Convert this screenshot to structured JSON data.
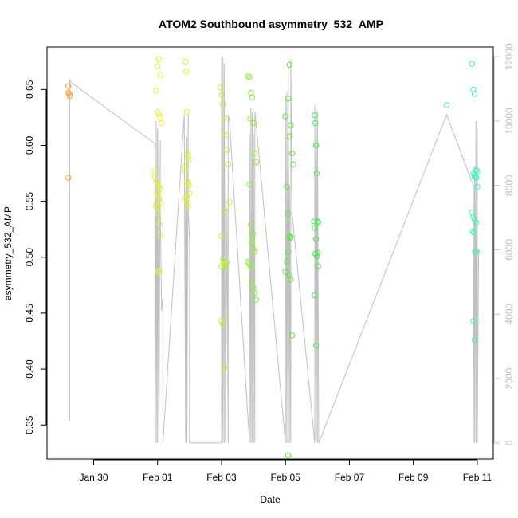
{
  "chart_data": {
    "type": "scatter",
    "title": "ATOM2 Southbound asymmetry_532_AMP",
    "xlabel": "Date",
    "ylabel": "asymmetry_532_AMP",
    "xlim": [
      "2014-01-28T13:00",
      "2014-02-11T12:00"
    ],
    "ylim": [
      0.3195,
      0.688
    ],
    "y2lim": [
      -500,
      12300
    ],
    "x_ticks": [
      {
        "date": "2014-01-30",
        "label": "Jan 30"
      },
      {
        "date": "2014-02-01",
        "label": "Feb 01"
      },
      {
        "date": "2014-02-03",
        "label": "Feb 03"
      },
      {
        "date": "2014-02-05",
        "label": "Feb 05"
      },
      {
        "date": "2014-02-07",
        "label": "Feb 07"
      },
      {
        "date": "2014-02-09",
        "label": "Feb 09"
      },
      {
        "date": "2014-02-11",
        "label": "Feb 11"
      }
    ],
    "y_ticks": [
      0.35,
      0.4,
      0.45,
      0.5,
      0.55,
      0.6,
      0.65
    ],
    "y_tick_labels": [
      "0.35",
      "0.40",
      "0.45",
      "0.50",
      "0.55",
      "0.60",
      "0.65"
    ],
    "y2_ticks": [
      0,
      2000,
      4000,
      6000,
      8000,
      10000,
      12000
    ],
    "y2_tick_labels": [
      "0",
      "2000",
      "4000",
      "6000",
      "8000",
      "10000",
      "12000"
    ],
    "grid": false,
    "colors": {
      "line": "#c0c0c0",
      "axis": "#000000",
      "right_axis": "#bdbdbd"
    },
    "series": [
      {
        "color": "#ff9a33",
        "x": [
          "2014-01-29T05:00",
          "2014-01-29T05:00",
          "2014-01-29T06:00",
          "2014-01-29T06:00",
          "2014-01-29T05:00"
        ],
        "y": [
          0.653,
          0.647,
          0.644,
          0.646,
          0.571
        ]
      },
      {
        "color": "#e3f23c",
        "x": [
          "2014-01-31T21:30",
          "2014-01-31T22:00",
          "2014-01-31T23:00",
          "2014-02-01T00:00",
          "2014-02-01T01:00",
          "2014-02-01T02:00",
          "2014-01-31T23:30",
          "2014-02-01T00:30",
          "2014-02-01T01:30",
          "2014-02-01T02:30",
          "2014-01-31T22:30",
          "2014-01-31T23:30",
          "2014-02-01T00:30",
          "2014-02-01T01:30",
          "2014-02-01T02:00",
          "2014-02-01T00:00",
          "2014-02-01T01:00",
          "2014-02-01T02:00",
          "2014-01-31T23:00",
          "2014-02-01T00:00",
          "2014-02-01T01:00",
          "2014-02-01T02:00",
          "2014-02-01T03:00",
          "2014-02-01T01:30",
          "2014-02-01T00:30"
        ],
        "y": [
          0.577,
          0.572,
          0.568,
          0.565,
          0.563,
          0.561,
          0.557,
          0.555,
          0.552,
          0.548,
          0.547,
          0.545,
          0.54,
          0.53,
          0.52,
          0.671,
          0.677,
          0.663,
          0.649,
          0.63,
          0.628,
          0.625,
          0.62,
          0.488,
          0.487
        ]
      },
      {
        "color": "#dcf52d",
        "x": [
          "2014-02-01T21:00",
          "2014-02-01T21:30",
          "2014-02-01T22:00",
          "2014-02-01T22:30",
          "2014-02-01T23:00",
          "2014-02-01T23:30",
          "2014-02-01T20:30",
          "2014-02-01T21:00",
          "2014-02-01T22:00",
          "2014-02-01T23:00",
          "2014-02-01T23:30",
          "2014-02-02T00:00",
          "2014-02-01T22:00",
          "2014-02-01T21:00",
          "2014-02-01T22:30",
          "2014-02-01T23:00"
        ],
        "y": [
          0.675,
          0.666,
          0.63,
          0.593,
          0.59,
          0.587,
          0.581,
          0.577,
          0.568,
          0.566,
          0.564,
          0.557,
          0.554,
          0.552,
          0.549,
          0.545
        ]
      },
      {
        "color": "#b8f52f",
        "x": [
          "2014-02-02T23:00",
          "2014-02-03T00:00",
          "2014-02-03T01:00",
          "2014-02-03T02:00",
          "2014-02-03T03:00",
          "2014-02-03T04:00",
          "2014-02-03T05:00",
          "2014-02-03T06:00",
          "2014-02-03T02:00",
          "2014-02-03T00:00",
          "2014-02-03T01:00",
          "2014-02-03T04:00",
          "2014-02-03T02:00",
          "2014-02-03T03:00",
          "2014-02-03T00:00",
          "2014-02-03T01:00",
          "2014-02-03T02:00",
          "2014-02-03T00:00"
        ],
        "y": [
          0.652,
          0.645,
          0.637,
          0.625,
          0.609,
          0.596,
          0.583,
          0.549,
          0.54,
          0.519,
          0.498,
          0.495,
          0.493,
          0.492,
          0.443,
          0.44,
          0.401,
          0.492
        ]
      },
      {
        "color": "#8ef03a",
        "x": [
          "2014-02-03T20:00",
          "2014-02-03T21:00",
          "2014-02-03T22:00",
          "2014-02-03T23:00",
          "2014-02-04T00:00",
          "2014-02-04T01:00",
          "2014-02-04T02:00",
          "2014-02-03T21:00",
          "2014-02-03T22:00",
          "2014-02-03T23:00",
          "2014-02-04T00:00",
          "2014-02-04T01:00",
          "2014-02-03T20:00",
          "2014-02-03T21:00",
          "2014-02-03T22:00",
          "2014-02-03T23:00",
          "2014-02-04T00:00",
          "2014-02-04T01:00",
          "2014-02-04T02:00",
          "2014-02-03T22:30",
          "2014-02-03T23:30",
          "2014-02-03T21:30"
        ],
        "y": [
          0.662,
          0.661,
          0.647,
          0.643,
          0.62,
          0.593,
          0.585,
          0.565,
          0.529,
          0.517,
          0.507,
          0.505,
          0.496,
          0.494,
          0.491,
          0.478,
          0.473,
          0.468,
          0.462,
          0.513,
          0.521,
          0.624
        ]
      },
      {
        "color": "#5ee83d",
        "x": [
          "2014-02-05T03:00",
          "2014-02-05T00:00",
          "2014-02-05T02:00",
          "2014-02-05T04:00",
          "2014-02-05T05:00",
          "2014-02-05T03:00",
          "2014-02-05T06:00",
          "2014-02-05T01:00",
          "2014-02-05T02:00",
          "2014-02-05T03:00",
          "2014-02-05T04:00",
          "2014-02-05T02:00",
          "2014-02-05T01:00",
          "2014-02-05T00:00",
          "2014-02-05T03:00",
          "2014-02-05T04:00",
          "2014-02-05T05:00",
          "2014-02-05T03:30",
          "2014-02-05T02:00"
        ],
        "y": [
          0.672,
          0.626,
          0.642,
          0.618,
          0.593,
          0.608,
          0.583,
          0.563,
          0.539,
          0.519,
          0.518,
          0.505,
          0.496,
          0.487,
          0.484,
          0.48,
          0.43,
          0.517,
          0.323
        ]
      },
      {
        "color": "#4ee85a",
        "x": [
          "2014-02-05T22:00",
          "2014-02-05T22:30",
          "2014-02-05T23:00",
          "2014-02-05T23:30",
          "2014-02-06T00:00",
          "2014-02-06T00:30",
          "2014-02-05T22:00",
          "2014-02-05T23:00",
          "2014-02-06T00:00",
          "2014-02-05T22:30",
          "2014-02-05T23:30",
          "2014-02-06T00:30",
          "2014-02-05T22:00",
          "2014-02-05T23:00",
          "2014-02-05T21:30",
          "2014-02-05T23:00"
        ],
        "y": [
          0.627,
          0.62,
          0.6,
          0.575,
          0.532,
          0.531,
          0.526,
          0.516,
          0.504,
          0.503,
          0.501,
          0.492,
          0.466,
          0.421,
          0.532,
          0.6
        ]
      },
      {
        "color": "#4ef0a0",
        "x": [
          "2014-02-10T01:00"
        ],
        "y": [
          0.636
        ]
      },
      {
        "color": "#3ef5c0",
        "x": [
          "2014-02-10T20:00",
          "2014-02-10T21:00",
          "2014-02-10T22:00",
          "2014-02-10T23:00",
          "2014-02-11T00:00",
          "2014-02-10T21:00",
          "2014-02-10T22:00",
          "2014-02-10T23:00",
          "2014-02-11T00:00",
          "2014-02-10T20:00",
          "2014-02-10T21:00",
          "2014-02-10T22:00",
          "2014-02-10T23:00",
          "2014-02-10T20:30",
          "2014-02-10T21:30",
          "2014-02-10T22:30",
          "2014-02-10T23:30",
          "2014-02-10T21:00",
          "2014-02-10T22:00",
          "2014-02-10T23:00",
          "2014-02-10T22:00"
        ],
        "y": [
          0.673,
          0.65,
          0.646,
          0.578,
          0.577,
          0.575,
          0.572,
          0.572,
          0.563,
          0.54,
          0.536,
          0.534,
          0.531,
          0.523,
          0.522,
          0.505,
          0.505,
          0.443,
          0.426,
          0.571,
          0.574
        ]
      }
    ],
    "right_axis_line": {
      "color": "#c0c0c0",
      "x": [
        "2014-01-29T06:00",
        "2014-01-29T06:00",
        "2014-01-29T07:00",
        "2014-01-31T22:00",
        "2014-01-31T22:00",
        "2014-01-31T23:00",
        "2014-01-31T23:00",
        "2014-02-01T00:00",
        "2014-02-01T00:00",
        "2014-02-01T01:00",
        "2014-02-01T01:00",
        "2014-02-01T02:00",
        "2014-02-01T02:00",
        "2014-02-01T03:00",
        "2014-02-01T04:00",
        "2014-02-01T04:00",
        "2014-02-01T20:00",
        "2014-02-01T21:00",
        "2014-02-01T21:00",
        "2014-02-01T22:00",
        "2014-02-01T22:00",
        "2014-02-01T23:00",
        "2014-02-01T23:00",
        "2014-02-02T00:00",
        "2014-02-02T00:00",
        "2014-02-03T00:00",
        "2014-02-03T00:00",
        "2014-02-03T01:00",
        "2014-02-03T01:00",
        "2014-02-03T02:00",
        "2014-02-03T02:00",
        "2014-02-03T03:00",
        "2014-02-03T03:00",
        "2014-02-03T04:00",
        "2014-02-03T04:00",
        "2014-02-03T05:00",
        "2014-02-03T05:00",
        "2014-02-03T06:00",
        "2014-02-03T21:00",
        "2014-02-03T21:00",
        "2014-02-03T22:00",
        "2014-02-03T22:00",
        "2014-02-03T23:00",
        "2014-02-03T23:00",
        "2014-02-04T00:00",
        "2014-02-04T00:00",
        "2014-02-04T01:00",
        "2014-02-04T01:00",
        "2014-02-04T02:00",
        "2014-02-05T00:00",
        "2014-02-05T00:00",
        "2014-02-05T01:00",
        "2014-02-05T01:00",
        "2014-02-05T02:00",
        "2014-02-05T02:00",
        "2014-02-05T03:00",
        "2014-02-05T03:00",
        "2014-02-05T04:00",
        "2014-02-05T04:00",
        "2014-02-05T05:00",
        "2014-02-05T22:00",
        "2014-02-05T22:00",
        "2014-02-05T23:00",
        "2014-02-05T23:00",
        "2014-02-06T00:00",
        "2014-02-06T00:00",
        "2014-02-06T01:00",
        "2014-02-10T01:00",
        "2014-02-10T21:00",
        "2014-02-10T21:00",
        "2014-02-10T22:00",
        "2014-02-10T22:00",
        "2014-02-10T23:00",
        "2014-02-10T23:00",
        "2014-02-11T00:00",
        "2014-02-11T00:00",
        "2014-02-11T01:00"
      ],
      "y": [
        700,
        11300,
        11200,
        9300,
        0,
        10000,
        0,
        9800,
        0,
        9700,
        0,
        9400,
        7500,
        4100,
        4500,
        0,
        10200,
        0,
        7300,
        9500,
        0,
        10200,
        7200,
        6300,
        0,
        0,
        12000,
        0,
        12000,
        0,
        11800,
        0,
        300,
        6900,
        7300,
        0,
        10200,
        10000,
        0,
        9600,
        0,
        10400,
        0,
        10300,
        0,
        9600,
        0,
        10300,
        9900,
        0,
        10700,
        0,
        10900,
        0,
        12000,
        0,
        8000,
        0,
        11900,
        7100,
        0,
        10500,
        0,
        10400,
        0,
        10300,
        0,
        10200,
        8000,
        0,
        8600,
        0,
        10000,
        0,
        9800,
        0,
        6000
      ]
    }
  }
}
